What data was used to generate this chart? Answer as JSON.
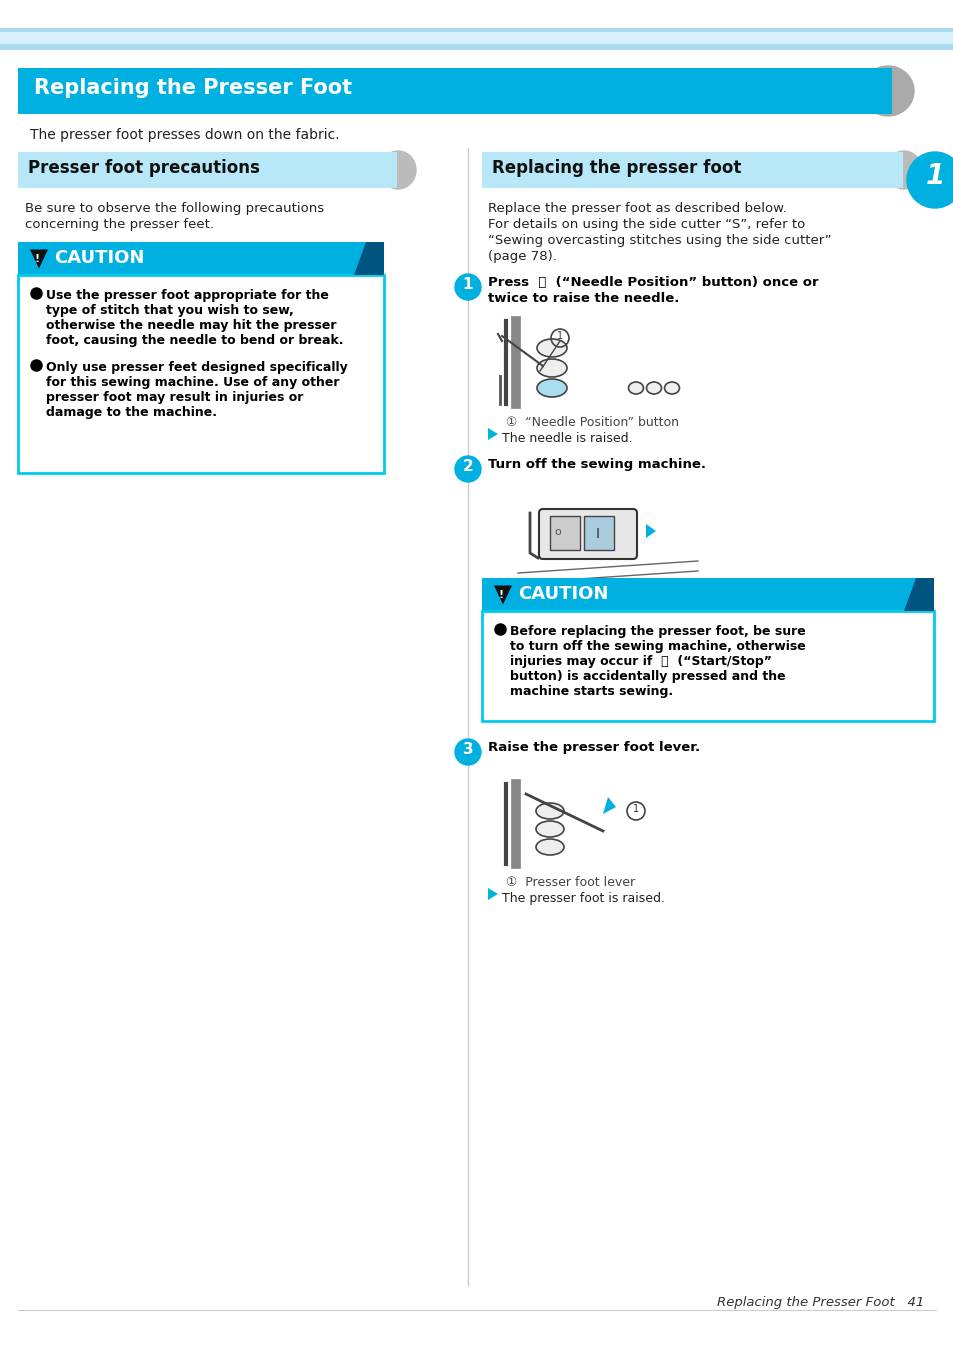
{
  "page_bg": "#ffffff",
  "main_title": "Replacing the Presser Foot",
  "main_title_bg": "#00b0e0",
  "main_title_color": "#ffffff",
  "left_section_title": "Presser foot precautions",
  "left_section_bg": "#b8e8f8",
  "right_section_title": "Replacing the presser foot",
  "right_section_bg": "#b8e8f8",
  "caution_bar_color": "#00b0e0",
  "caution_box_border": "#00ccee",
  "intro_text": "The presser foot presses down on the fabric.",
  "left_intro_line1": "Be sure to observe the following precautions",
  "left_intro_line2": "concerning the presser feet.",
  "right_intro_line1": "Replace the presser foot as described below.",
  "right_intro_line2": "For details on using the side cutter “S”, refer to",
  "right_intro_line3": "“Sewing overcasting stitches using the side cutter”",
  "right_intro_line4": "(page 78).",
  "step1_label": "1",
  "step1_text_line1": "Press  ⓘ  (“Needle Position” button) once or",
  "step1_text_line2": "twice to raise the needle.",
  "step1_note": "①  “Needle Position” button",
  "step1_result": "The needle is raised.",
  "step2_label": "2",
  "step2_text": "Turn off the sewing machine.",
  "step3_label": "3",
  "step3_text": "Raise the presser foot lever.",
  "step3_note": "①  Presser foot lever",
  "step3_result": "The presser foot is raised.",
  "left_b1_l1": "Use the presser foot appropriate for the",
  "left_b1_l2": "type of stitch that you wish to sew,",
  "left_b1_l3": "otherwise the needle may hit the presser",
  "left_b1_l4": "foot, causing the needle to bend or break.",
  "left_b2_l1": "Only use presser feet designed specifically",
  "left_b2_l2": "for this sewing machine. Use of any other",
  "left_b2_l3": "presser foot may result in injuries or",
  "left_b2_l4": "damage to the machine.",
  "caut2_l1": "Before replacing the presser foot, be sure",
  "caut2_l2": "to turn off the sewing machine, otherwise",
  "caut2_l3": "injuries may occur if  ⓘ  (“Start/Stop”",
  "caut2_l4": "button) is accidentally pressed and the",
  "caut2_l5": "machine starts sewing.",
  "footer_text": "Replacing the Presser Foot   41",
  "cyan_color": "#00b0e0",
  "dark_text": "#1a1a1a",
  "gray_arrow": "#aaaaaa"
}
